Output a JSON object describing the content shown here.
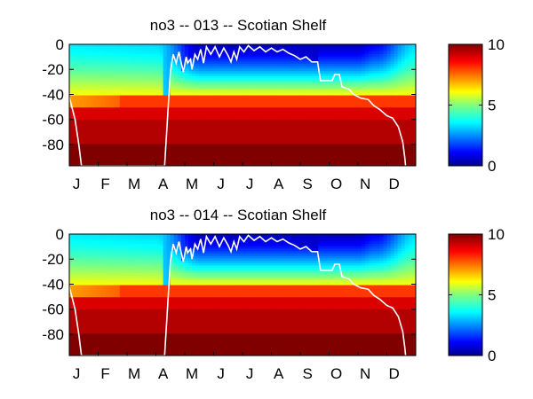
{
  "chart_data": [
    {
      "type": "heatmap",
      "title": "no3 -- 013 -- Scotian Shelf",
      "xlabel": "",
      "ylabel": "",
      "x_ticks": [
        "J",
        "F",
        "M",
        "A",
        "M",
        "J",
        "J",
        "A",
        "S",
        "O",
        "N",
        "D"
      ],
      "y_ticks": [
        0,
        -20,
        -40,
        -60,
        -80
      ],
      "ylim": [
        -97,
        0
      ],
      "colorbar": {
        "ticks": [
          0,
          5,
          10
        ],
        "clim": [
          0,
          10
        ],
        "colormap": "jet"
      },
      "mixed_layer_line_color": "#ffffff",
      "mixed_layer_depth": [
        {
          "m": 0.0,
          "d": -42
        },
        {
          "m": 0.2,
          "d": -60
        },
        {
          "m": 0.33,
          "d": -80
        },
        {
          "m": 0.42,
          "d": -97
        },
        {
          "m": 3.3,
          "d": -97
        },
        {
          "m": 3.4,
          "d": -60
        },
        {
          "m": 3.5,
          "d": -22
        },
        {
          "m": 3.6,
          "d": -8
        },
        {
          "m": 3.7,
          "d": -15
        },
        {
          "m": 3.8,
          "d": -6
        },
        {
          "m": 3.85,
          "d": -12
        },
        {
          "m": 3.95,
          "d": -22
        },
        {
          "m": 4.05,
          "d": -10
        },
        {
          "m": 4.1,
          "d": -15
        },
        {
          "m": 4.2,
          "d": -12
        },
        {
          "m": 4.25,
          "d": -20
        },
        {
          "m": 4.35,
          "d": -8
        },
        {
          "m": 4.45,
          "d": -12
        },
        {
          "m": 4.55,
          "d": -4
        },
        {
          "m": 4.65,
          "d": -15
        },
        {
          "m": 4.75,
          "d": -2
        },
        {
          "m": 4.9,
          "d": -8
        },
        {
          "m": 5.05,
          "d": -2
        },
        {
          "m": 5.2,
          "d": -10
        },
        {
          "m": 5.35,
          "d": -3
        },
        {
          "m": 5.5,
          "d": -9
        },
        {
          "m": 5.6,
          "d": -14
        },
        {
          "m": 5.7,
          "d": -6
        },
        {
          "m": 5.8,
          "d": -12
        },
        {
          "m": 5.9,
          "d": -2
        },
        {
          "m": 6.05,
          "d": -6
        },
        {
          "m": 6.2,
          "d": -1
        },
        {
          "m": 6.4,
          "d": -5
        },
        {
          "m": 6.6,
          "d": -2
        },
        {
          "m": 6.8,
          "d": -6
        },
        {
          "m": 7.0,
          "d": -3
        },
        {
          "m": 7.2,
          "d": -6
        },
        {
          "m": 7.4,
          "d": -4
        },
        {
          "m": 7.6,
          "d": -7
        },
        {
          "m": 7.8,
          "d": -9
        },
        {
          "m": 8.0,
          "d": -12
        },
        {
          "m": 8.2,
          "d": -10
        },
        {
          "m": 8.4,
          "d": -14
        },
        {
          "m": 8.6,
          "d": -14
        },
        {
          "m": 8.7,
          "d": -29
        },
        {
          "m": 9.1,
          "d": -29
        },
        {
          "m": 9.2,
          "d": -24
        },
        {
          "m": 9.35,
          "d": -24
        },
        {
          "m": 9.45,
          "d": -34
        },
        {
          "m": 9.7,
          "d": -36
        },
        {
          "m": 9.85,
          "d": -40
        },
        {
          "m": 10.1,
          "d": -43
        },
        {
          "m": 10.35,
          "d": -44
        },
        {
          "m": 10.55,
          "d": -49
        },
        {
          "m": 10.75,
          "d": -52
        },
        {
          "m": 11.0,
          "d": -57
        },
        {
          "m": 11.2,
          "d": -59
        },
        {
          "m": 11.4,
          "d": -66
        },
        {
          "m": 11.55,
          "d": -78
        },
        {
          "m": 11.62,
          "d": -90
        },
        {
          "m": 11.65,
          "d": -97
        }
      ]
    },
    {
      "type": "heatmap",
      "title": "no3 -- 014 -- Scotian Shelf",
      "xlabel": "",
      "ylabel": "",
      "x_ticks": [
        "J",
        "F",
        "M",
        "A",
        "M",
        "J",
        "J",
        "A",
        "S",
        "O",
        "N",
        "D"
      ],
      "y_ticks": [
        0,
        -20,
        -40,
        -60,
        -80
      ],
      "ylim": [
        -97,
        0
      ],
      "colorbar": {
        "ticks": [
          0,
          5,
          10
        ],
        "clim": [
          0,
          10
        ],
        "colormap": "jet"
      },
      "mixed_layer_line_color": "#ffffff",
      "mixed_layer_depth": [
        {
          "m": 0.0,
          "d": -42
        },
        {
          "m": 0.2,
          "d": -60
        },
        {
          "m": 0.33,
          "d": -80
        },
        {
          "m": 0.42,
          "d": -97
        },
        {
          "m": 3.3,
          "d": -97
        },
        {
          "m": 3.4,
          "d": -60
        },
        {
          "m": 3.5,
          "d": -22
        },
        {
          "m": 3.6,
          "d": -8
        },
        {
          "m": 3.7,
          "d": -15
        },
        {
          "m": 3.8,
          "d": -6
        },
        {
          "m": 3.85,
          "d": -12
        },
        {
          "m": 3.95,
          "d": -22
        },
        {
          "m": 4.05,
          "d": -10
        },
        {
          "m": 4.1,
          "d": -15
        },
        {
          "m": 4.2,
          "d": -12
        },
        {
          "m": 4.25,
          "d": -20
        },
        {
          "m": 4.35,
          "d": -8
        },
        {
          "m": 4.45,
          "d": -12
        },
        {
          "m": 4.55,
          "d": -4
        },
        {
          "m": 4.65,
          "d": -15
        },
        {
          "m": 4.75,
          "d": -2
        },
        {
          "m": 4.9,
          "d": -8
        },
        {
          "m": 5.05,
          "d": -2
        },
        {
          "m": 5.2,
          "d": -10
        },
        {
          "m": 5.35,
          "d": -3
        },
        {
          "m": 5.5,
          "d": -9
        },
        {
          "m": 5.6,
          "d": -14
        },
        {
          "m": 5.7,
          "d": -6
        },
        {
          "m": 5.8,
          "d": -12
        },
        {
          "m": 5.9,
          "d": -2
        },
        {
          "m": 6.05,
          "d": -6
        },
        {
          "m": 6.2,
          "d": -1
        },
        {
          "m": 6.4,
          "d": -5
        },
        {
          "m": 6.6,
          "d": -2
        },
        {
          "m": 6.8,
          "d": -6
        },
        {
          "m": 7.0,
          "d": -3
        },
        {
          "m": 7.2,
          "d": -6
        },
        {
          "m": 7.4,
          "d": -4
        },
        {
          "m": 7.6,
          "d": -7
        },
        {
          "m": 7.8,
          "d": -9
        },
        {
          "m": 8.0,
          "d": -12
        },
        {
          "m": 8.2,
          "d": -10
        },
        {
          "m": 8.4,
          "d": -14
        },
        {
          "m": 8.6,
          "d": -14
        },
        {
          "m": 8.7,
          "d": -29
        },
        {
          "m": 9.1,
          "d": -29
        },
        {
          "m": 9.2,
          "d": -24
        },
        {
          "m": 9.35,
          "d": -24
        },
        {
          "m": 9.45,
          "d": -34
        },
        {
          "m": 9.7,
          "d": -36
        },
        {
          "m": 9.85,
          "d": -40
        },
        {
          "m": 10.1,
          "d": -43
        },
        {
          "m": 10.35,
          "d": -44
        },
        {
          "m": 10.55,
          "d": -49
        },
        {
          "m": 10.75,
          "d": -52
        },
        {
          "m": 11.0,
          "d": -57
        },
        {
          "m": 11.2,
          "d": -59
        },
        {
          "m": 11.4,
          "d": -66
        },
        {
          "m": 11.55,
          "d": -78
        },
        {
          "m": 11.62,
          "d": -90
        },
        {
          "m": 11.65,
          "d": -97
        }
      ]
    }
  ]
}
